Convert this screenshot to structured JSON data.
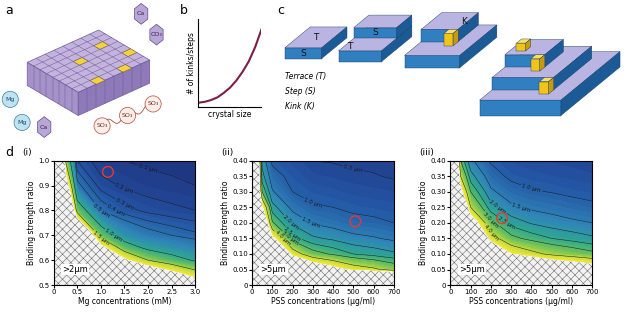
{
  "panel_a": {
    "panel_label": "a",
    "ions": [
      "Ca",
      "CO₃",
      "SO₃",
      "SO₃",
      "SO₃",
      "Mg",
      "Mg",
      "Ca"
    ]
  },
  "panel_c": {
    "panel_label": "c",
    "tags": [
      "T",
      "S",
      "S",
      "T",
      "K"
    ],
    "key": [
      "Terrace (T)",
      "Step (S)",
      "Kink (K)"
    ]
  },
  "panel_d": {
    "panel_label": "d"
  },
  "chart_data": [
    {
      "type": "line",
      "panel_label": "b",
      "xlabel": "crystal size",
      "ylabel": "# of kinks/steps",
      "x": [
        0,
        0.1,
        0.2,
        0.3,
        0.4,
        0.5,
        0.6,
        0.7,
        0.8,
        0.9,
        1.0
      ],
      "y": [
        0.05,
        0.06,
        0.08,
        0.11,
        0.16,
        0.22,
        0.3,
        0.4,
        0.52,
        0.68,
        0.88
      ],
      "xlim": [
        0,
        1.0
      ],
      "ylim": [
        0,
        1.0
      ],
      "xticks": [],
      "yticks": [],
      "color": "#7b1e4a",
      "tick_labels": false
    },
    {
      "type": "contour",
      "panel_label": "(i)",
      "xlabel": "Mg concentrations (mM)",
      "ylabel": "Binding strength ratio",
      "x": [
        0,
        0.25,
        0.5,
        1.0,
        1.5,
        2.0,
        2.5,
        3.0
      ],
      "y": [
        0.5,
        0.55,
        0.6,
        0.65,
        0.7,
        0.8,
        0.9,
        1.0
      ],
      "z": [
        [
          12,
          10,
          8,
          6,
          5,
          4,
          3.2,
          2.5
        ],
        [
          12,
          9,
          7,
          5,
          3.5,
          2.6,
          2.1,
          1.65
        ],
        [
          12,
          8,
          6,
          3.5,
          2.1,
          1.5,
          1.2,
          0.95
        ],
        [
          12,
          7,
          5,
          2.2,
          1.25,
          0.9,
          0.75,
          0.65
        ],
        [
          12,
          6,
          3.5,
          1.3,
          0.75,
          0.58,
          0.5,
          0.43
        ],
        [
          12,
          4,
          1.3,
          0.5,
          0.34,
          0.27,
          0.23,
          0.2
        ],
        [
          12,
          2.5,
          0.55,
          0.25,
          0.18,
          0.14,
          0.12,
          0.1
        ],
        [
          12,
          1.5,
          0.3,
          0.13,
          0.1,
          0.08,
          0.07,
          0.06
        ]
      ],
      "xlim": [
        0,
        3.0
      ],
      "ylim": [
        0.5,
        1.0
      ],
      "xticks": [
        0,
        0.5,
        1.0,
        1.5,
        2.0,
        2.5,
        3.0
      ],
      "yticks": [
        0.5,
        0.6,
        0.7,
        0.8,
        0.9,
        1.0
      ],
      "color_range": [
        0,
        2
      ],
      "levels": [
        {
          "value": 0.1,
          "label": "0.1 µm"
        },
        {
          "value": 0.2,
          "label": "0.2 µm"
        },
        {
          "value": 0.3,
          "label": "0.3 µm"
        },
        {
          "value": 0.4,
          "label": "0.4 µm"
        },
        {
          "value": 0.5,
          "label": "0.5 µm"
        },
        {
          "value": 1.0,
          "label": "1.0 µm"
        },
        {
          "value": 1.5,
          "label": "1.5 µm"
        }
      ],
      "hatch_label": ">2µm",
      "series": [
        {
          "type": "scatter",
          "marker": "circle",
          "color": "#e53935",
          "x": [
            1.15
          ],
          "y": [
            0.955
          ]
        }
      ]
    },
    {
      "type": "contour",
      "panel_label": "(ii)",
      "xlabel": "PSS concentrations (µg/ml)",
      "ylabel": "Binding strength ratio",
      "x": [
        0,
        50,
        100,
        200,
        300,
        400,
        500,
        600,
        700
      ],
      "y": [
        0,
        0.05,
        0.1,
        0.15,
        0.2,
        0.25,
        0.3,
        0.35,
        0.4
      ],
      "z": [
        [
          12,
          12,
          12,
          12,
          12,
          12,
          12,
          12,
          12
        ],
        [
          12,
          11,
          10,
          8,
          6.5,
          5.5,
          4.6,
          4.2,
          3.6
        ],
        [
          12,
          10,
          8,
          4.6,
          3.3,
          2.9,
          2.5,
          2.3,
          2.1
        ],
        [
          12,
          9,
          5.3,
          2.7,
          2.1,
          1.9,
          1.65,
          1.55,
          1.4
        ],
        [
          12,
          7,
          3.1,
          1.9,
          1.45,
          1.3,
          1.15,
          1.1,
          1.0
        ],
        [
          12,
          5.2,
          2.2,
          1.35,
          1.05,
          1.0,
          0.9,
          0.85,
          0.8
        ],
        [
          12,
          3.0,
          1.55,
          1.0,
          0.85,
          0.78,
          0.7,
          0.66,
          0.62
        ],
        [
          12,
          2.2,
          1.2,
          0.85,
          0.65,
          0.6,
          0.55,
          0.52,
          0.47
        ],
        [
          12,
          1.8,
          0.9,
          0.7,
          0.5,
          0.48,
          0.45,
          0.43,
          0.4
        ]
      ],
      "xlim": [
        0,
        700
      ],
      "ylim": [
        0,
        0.4
      ],
      "xticks": [
        0,
        100,
        200,
        300,
        400,
        500,
        600,
        700
      ],
      "yticks": [
        0,
        0.05,
        {
          "value": 0.1,
          "label": "0.10"
        },
        0.15,
        {
          "value": 0.2,
          "label": "0.20"
        },
        0.25,
        {
          "value": 0.3,
          "label": "0.30"
        },
        0.35,
        {
          "value": 0.4,
          "label": "0.40"
        }
      ],
      "color_range": [
        0,
        5
      ],
      "levels": [
        {
          "value": 0.5,
          "label": "0.5 µm"
        },
        {
          "value": 1.0,
          "label": "1.0 µm"
        },
        {
          "value": 1.5,
          "label": "1.5 µm"
        },
        {
          "value": 2.0,
          "label": "2.0 µm"
        },
        {
          "value": 2.5,
          "label": "2.5 µm"
        },
        {
          "value": 3.0,
          "label": "3.0 µm"
        },
        {
          "value": 4.0,
          "label": "4.0 µm"
        }
      ],
      "hatch_label": ">5µm",
      "series": [
        {
          "type": "scatter",
          "marker": "circle",
          "color": "#e53935",
          "x": [
            510
          ],
          "y": [
            0.205
          ]
        }
      ]
    },
    {
      "type": "contour",
      "panel_label": "(iii)",
      "xlabel": "PSS concentrations (µg/ml)",
      "ylabel": "Binding strength ratio",
      "x": [
        0,
        50,
        100,
        200,
        300,
        400,
        500,
        600,
        700
      ],
      "y": [
        0,
        0.05,
        0.1,
        0.15,
        0.2,
        0.25,
        0.3,
        0.35,
        0.4
      ],
      "z": [
        [
          12,
          12,
          12,
          12,
          12,
          12,
          12,
          12,
          12
        ],
        [
          12,
          12,
          11,
          10,
          9,
          8,
          7,
          6.5,
          6
        ],
        [
          12,
          11,
          10,
          7,
          5,
          4.3,
          3.8,
          3.5,
          3.2
        ],
        [
          12,
          10,
          8,
          4.5,
          3.2,
          2.8,
          2.5,
          2.3,
          2.1
        ],
        [
          12,
          9,
          6,
          3.2,
          2.3,
          1.95,
          1.75,
          1.6,
          1.5
        ],
        [
          12,
          7.5,
          4,
          2.2,
          1.6,
          1.4,
          1.3,
          1.2,
          1.1
        ],
        [
          12,
          5.5,
          3,
          1.6,
          1.2,
          1.05,
          0.98,
          0.9,
          0.85
        ],
        [
          12,
          4,
          2.2,
          1.2,
          0.9,
          0.8,
          0.75,
          0.7,
          0.65
        ],
        [
          12,
          3,
          1.6,
          0.95,
          0.72,
          0.65,
          0.6,
          0.56,
          0.5
        ]
      ],
      "xlim": [
        0,
        700
      ],
      "ylim": [
        0,
        0.4
      ],
      "xticks": [
        0,
        100,
        200,
        300,
        400,
        500,
        600,
        700
      ],
      "yticks": [
        0,
        0.05,
        {
          "value": 0.1,
          "label": "0.10"
        },
        0.15,
        {
          "value": 0.2,
          "label": "0.20"
        },
        0.25,
        {
          "value": 0.3,
          "label": "0.30"
        },
        0.35,
        {
          "value": 0.4,
          "label": "0.40"
        }
      ],
      "color_range": [
        0,
        5
      ],
      "levels": [
        {
          "value": 0.5,
          "label": "0.5 µm"
        },
        {
          "value": 1.0,
          "label": "1.0 µm"
        },
        {
          "value": 1.5,
          "label": "1.5 µm"
        },
        {
          "value": 2.0,
          "label": "2.0 µm"
        },
        {
          "value": 2.5,
          "label": "2.5 µm"
        },
        {
          "value": 3.0,
          "label": "3.0 µm"
        },
        {
          "value": 4.0,
          "label": "4.0 µm"
        }
      ],
      "hatch_label": ">5µm",
      "series": [
        {
          "type": "scatter",
          "marker": "circle",
          "color": "#e53935",
          "x": [
            255
          ],
          "y": [
            0.215
          ]
        }
      ]
    }
  ]
}
